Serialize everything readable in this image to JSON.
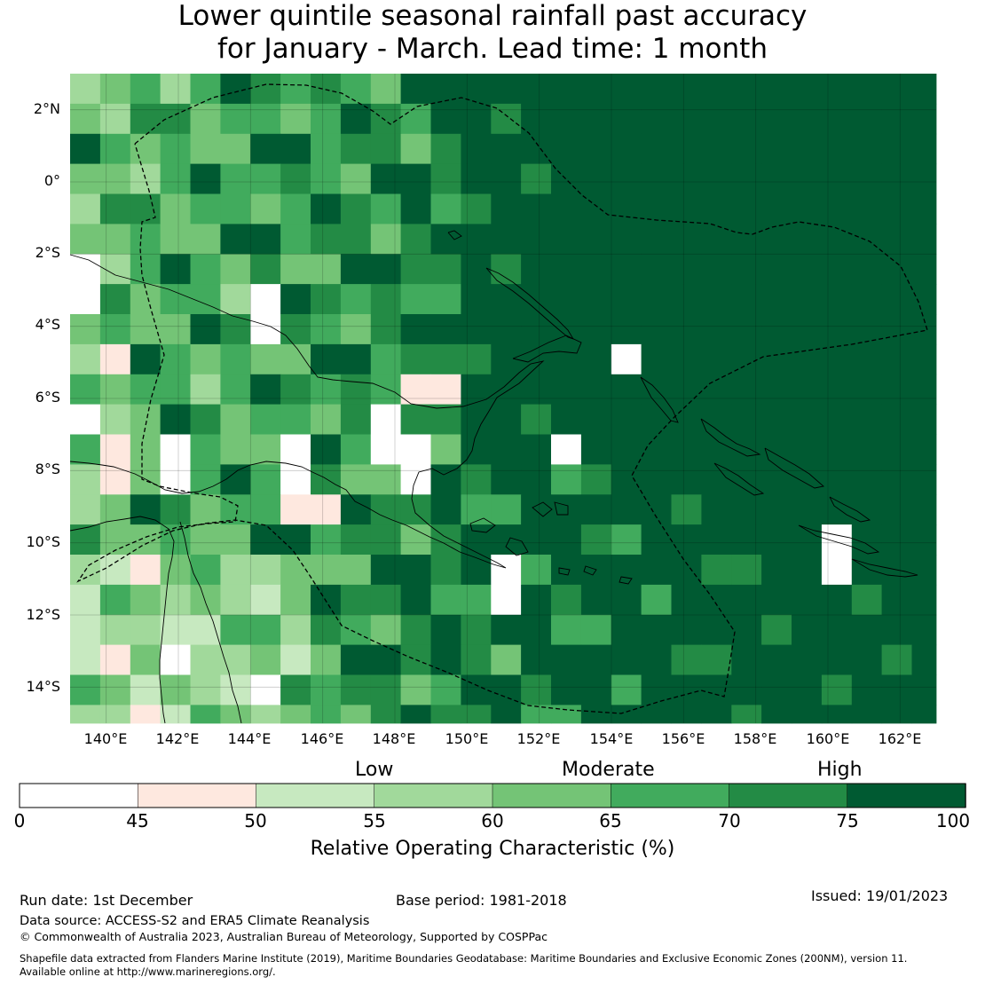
{
  "title": {
    "line1": "Lower quintile seasonal rainfall past accuracy",
    "line2": "for January - March. Lead time: 1 month"
  },
  "map": {
    "lat_labels": [
      "2°N",
      "0°",
      "2°S",
      "4°S",
      "6°S",
      "8°S",
      "10°S",
      "12°S",
      "14°S"
    ],
    "lon_labels": [
      "140°E",
      "142°E",
      "144°E",
      "146°E",
      "148°E",
      "150°E",
      "152°E",
      "154°E",
      "156°E",
      "158°E",
      "160°E",
      "162°E"
    ],
    "lat_range": [
      -15,
      3
    ],
    "lon_range": [
      139,
      163
    ],
    "cell_size_deg": 0.833
  },
  "legend": {
    "categories": [
      "Low",
      "Moderate",
      "High"
    ],
    "ticks": [
      "0",
      "45",
      "50",
      "55",
      "60",
      "65",
      "70",
      "75",
      "100"
    ],
    "bins": [
      {
        "from": 0,
        "to": 45,
        "color": "#ffffff"
      },
      {
        "from": 45,
        "to": 50,
        "color": "#fee8df"
      },
      {
        "from": 50,
        "to": 55,
        "color": "#c7e9c0"
      },
      {
        "from": 55,
        "to": 60,
        "color": "#a1d99b"
      },
      {
        "from": 60,
        "to": 65,
        "color": "#74c476"
      },
      {
        "from": 65,
        "to": 70,
        "color": "#41ab5d"
      },
      {
        "from": 70,
        "to": 75,
        "color": "#238b45"
      },
      {
        "from": 75,
        "to": 100,
        "color": "#005a32"
      }
    ],
    "label": "Relative Operating Characteristic (%)"
  },
  "footer": {
    "run_date": "Run date: 1st December",
    "base_period": "Base period: 1981-2018",
    "issued": "Issued: 19/01/2023",
    "data_source": "Data source: ACCESS-S2 and ERA5 Climate Reanalysis",
    "copyright": "© Commonwealth of Australia 2023, Australian Bureau of Meteorology, Supported by COSPPac",
    "shapefile_line1": "Shapefile data extracted from Flanders Marine Institute (2019), Maritime Boundaries Geodatabase: Maritime Boundaries and Exclusive Economic Zones (200NM), version 11.",
    "shapefile_line2": "Available online at http://www.marineregions.org/."
  }
}
